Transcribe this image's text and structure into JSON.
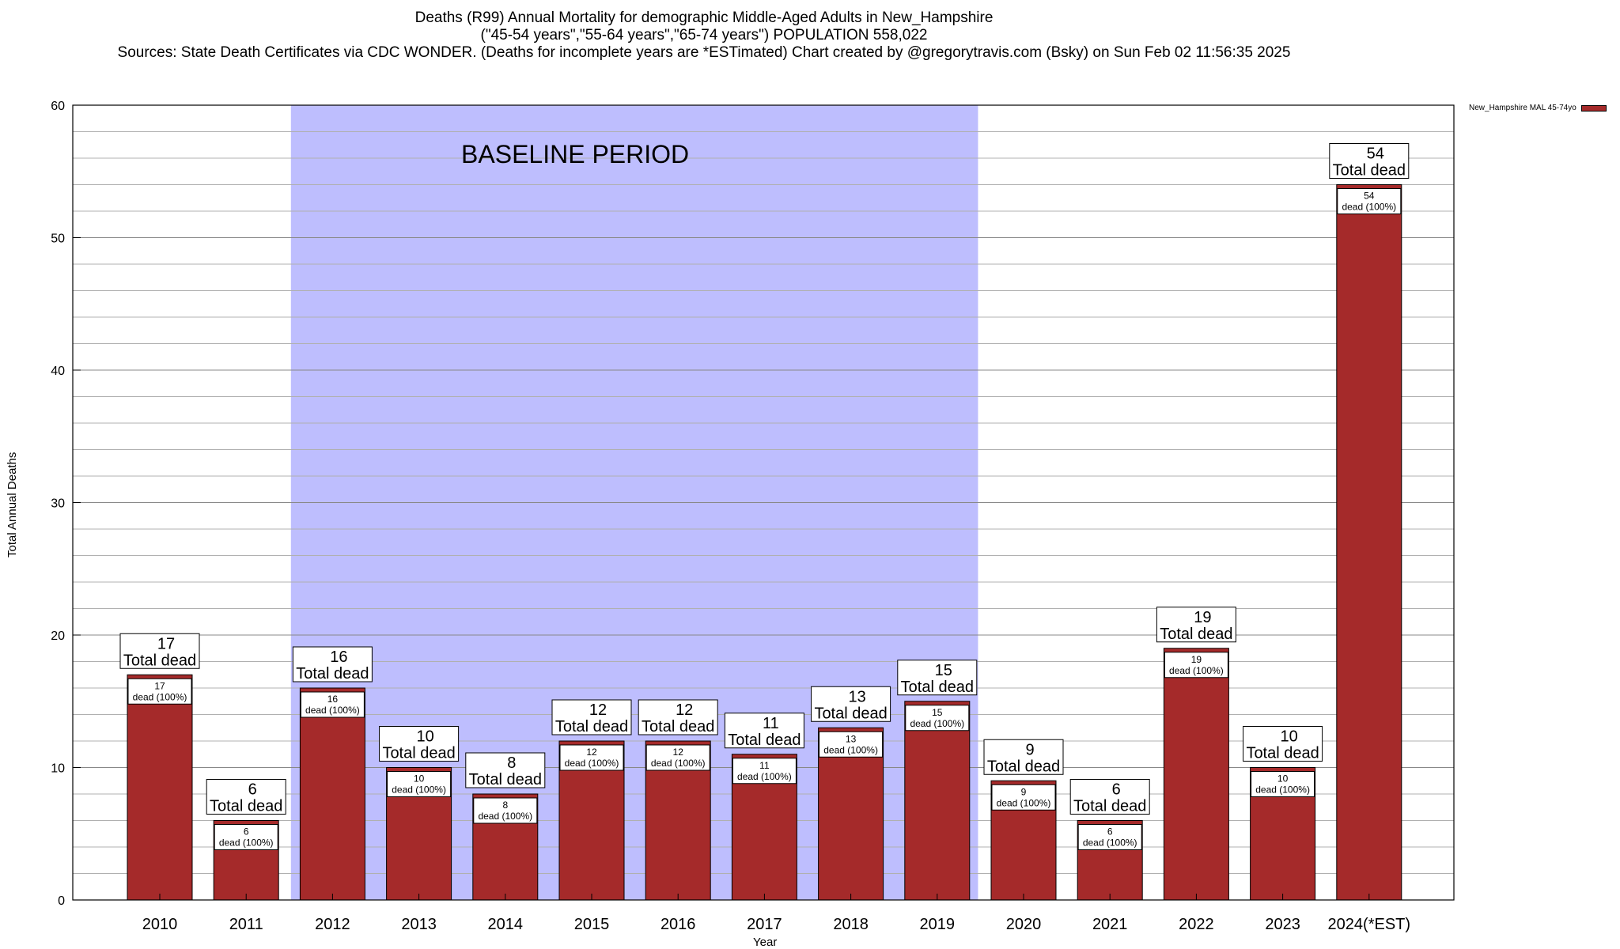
{
  "chart_data": {
    "type": "bar",
    "title": "Deaths (R99) Annual Mortality for demographic Middle-Aged Adults in New_Hampshire",
    "subtitle": "(\"45-54 years\",\"55-64 years\",\"65-74 years\") POPULATION 558,022",
    "sources": "Sources: State Death Certificates via CDC WONDER. (Deaths for incomplete years are *ESTimated)",
    "credit": "Chart created by @gregorytravis.com (Bsky) on Sun Feb 02 11:56:35 2025",
    "xlabel": "Year",
    "ylabel": "Total Annual Deaths",
    "ylim": [
      0,
      60
    ],
    "yticks": [
      0,
      10,
      20,
      30,
      40,
      50,
      60
    ],
    "minor_grid_step": 2,
    "categories": [
      "2010",
      "2011",
      "2012",
      "2013",
      "2014",
      "2015",
      "2016",
      "2017",
      "2018",
      "2019",
      "2020",
      "2021",
      "2022",
      "2023",
      "2024(*EST)"
    ],
    "series": [
      {
        "name": "New_Hampshire MAL 45-74yo",
        "values": [
          17,
          6,
          16,
          10,
          8,
          12,
          12,
          11,
          13,
          15,
          9,
          6,
          19,
          10,
          54
        ]
      }
    ],
    "total_label": "Total dead",
    "inner_label": "dead (100%)",
    "baseline": {
      "label": "BASELINE PERIOD",
      "start": "2012",
      "end": "2019"
    },
    "colors": {
      "bar": "#a52a2a",
      "baseline_fill": "#bebefe",
      "grid": "#b0b0b0"
    }
  }
}
